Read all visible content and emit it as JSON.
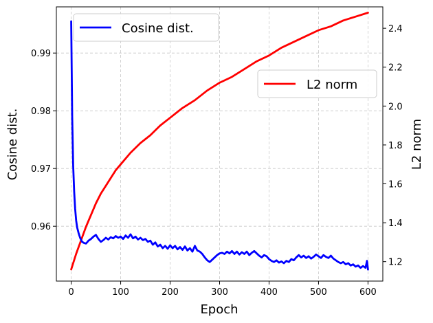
{
  "chart_data": {
    "type": "line",
    "title": "",
    "xlabel": "Epoch",
    "ylabel_left": "Cosine dist.",
    "ylabel_right": "L2 norm",
    "xlim": [
      -30,
      630
    ],
    "ylim_left": [
      0.9505,
      0.998
    ],
    "ylim_right": [
      1.1,
      2.51
    ],
    "xticks": [
      0,
      100,
      200,
      300,
      400,
      500,
      600
    ],
    "yticks_left": [
      0.96,
      0.97,
      0.98,
      0.99
    ],
    "yticks_right": [
      1.2,
      1.4,
      1.6,
      1.8,
      2.0,
      2.2,
      2.4
    ],
    "grid": true,
    "series": [
      {
        "name": "Cosine dist.",
        "axis": "left",
        "color": "#0000ff",
        "legend": "top-left",
        "x": [
          0,
          2,
          4,
          6,
          8,
          10,
          12,
          15,
          18,
          22,
          26,
          30,
          35,
          40,
          45,
          50,
          55,
          60,
          65,
          70,
          75,
          80,
          85,
          90,
          95,
          100,
          105,
          110,
          115,
          120,
          125,
          130,
          135,
          140,
          145,
          150,
          155,
          160,
          165,
          170,
          175,
          180,
          185,
          190,
          195,
          200,
          205,
          210,
          215,
          220,
          225,
          230,
          235,
          240,
          245,
          250,
          255,
          260,
          265,
          270,
          275,
          280,
          285,
          290,
          295,
          300,
          305,
          310,
          315,
          320,
          325,
          330,
          335,
          340,
          345,
          350,
          355,
          360,
          365,
          370,
          375,
          380,
          385,
          390,
          395,
          400,
          405,
          410,
          415,
          420,
          425,
          430,
          435,
          440,
          445,
          450,
          455,
          460,
          465,
          470,
          475,
          480,
          485,
          490,
          495,
          500,
          505,
          510,
          515,
          520,
          525,
          530,
          535,
          540,
          545,
          550,
          555,
          560,
          565,
          570,
          575,
          580,
          585,
          590,
          595,
          598,
          600
        ],
        "y": [
          0.9955,
          0.979,
          0.9705,
          0.966,
          0.963,
          0.961,
          0.9598,
          0.9588,
          0.958,
          0.9573,
          0.9571,
          0.957,
          0.9575,
          0.9578,
          0.9582,
          0.9585,
          0.9578,
          0.9573,
          0.9576,
          0.958,
          0.9577,
          0.9581,
          0.9579,
          0.9583,
          0.958,
          0.9582,
          0.9578,
          0.9584,
          0.958,
          0.9586,
          0.9579,
          0.9582,
          0.9577,
          0.958,
          0.9576,
          0.9578,
          0.9573,
          0.9575,
          0.9568,
          0.9572,
          0.9565,
          0.9568,
          0.9562,
          0.9566,
          0.9561,
          0.9567,
          0.9562,
          0.9566,
          0.956,
          0.9564,
          0.9559,
          0.9565,
          0.9558,
          0.9562,
          0.9556,
          0.9566,
          0.9558,
          0.9556,
          0.9552,
          0.9546,
          0.9541,
          0.9538,
          0.9542,
          0.9546,
          0.955,
          0.9553,
          0.9554,
          0.9552,
          0.9556,
          0.9553,
          0.9557,
          0.9552,
          0.9556,
          0.9551,
          0.9555,
          0.9552,
          0.9556,
          0.955,
          0.9554,
          0.9557,
          0.9553,
          0.9549,
          0.9546,
          0.955,
          0.9548,
          0.9543,
          0.954,
          0.9538,
          0.9541,
          0.9537,
          0.9539,
          0.9536,
          0.954,
          0.9538,
          0.9543,
          0.9541,
          0.9546,
          0.955,
          0.9546,
          0.9549,
          0.9545,
          0.9548,
          0.9544,
          0.9547,
          0.9551,
          0.9548,
          0.9545,
          0.955,
          0.9547,
          0.9545,
          0.9549,
          0.9544,
          0.9541,
          0.9538,
          0.9536,
          0.9538,
          0.9534,
          0.9536,
          0.9532,
          0.9534,
          0.953,
          0.9532,
          0.9528,
          0.9531,
          0.9528,
          0.954,
          0.9525
        ]
      },
      {
        "name": "L2 norm",
        "axis": "right",
        "color": "#ff0000",
        "legend": "center-right",
        "x": [
          0,
          5,
          10,
          20,
          30,
          40,
          50,
          60,
          70,
          80,
          90,
          100,
          120,
          140,
          160,
          180,
          200,
          225,
          250,
          275,
          300,
          325,
          350,
          375,
          400,
          425,
          450,
          475,
          500,
          525,
          550,
          575,
          600
        ],
        "y": [
          1.16,
          1.2,
          1.24,
          1.31,
          1.38,
          1.44,
          1.5,
          1.55,
          1.59,
          1.63,
          1.67,
          1.7,
          1.76,
          1.81,
          1.85,
          1.9,
          1.94,
          1.99,
          2.03,
          2.08,
          2.12,
          2.15,
          2.19,
          2.23,
          2.26,
          2.3,
          2.33,
          2.36,
          2.39,
          2.41,
          2.44,
          2.46,
          2.48
        ]
      }
    ]
  }
}
